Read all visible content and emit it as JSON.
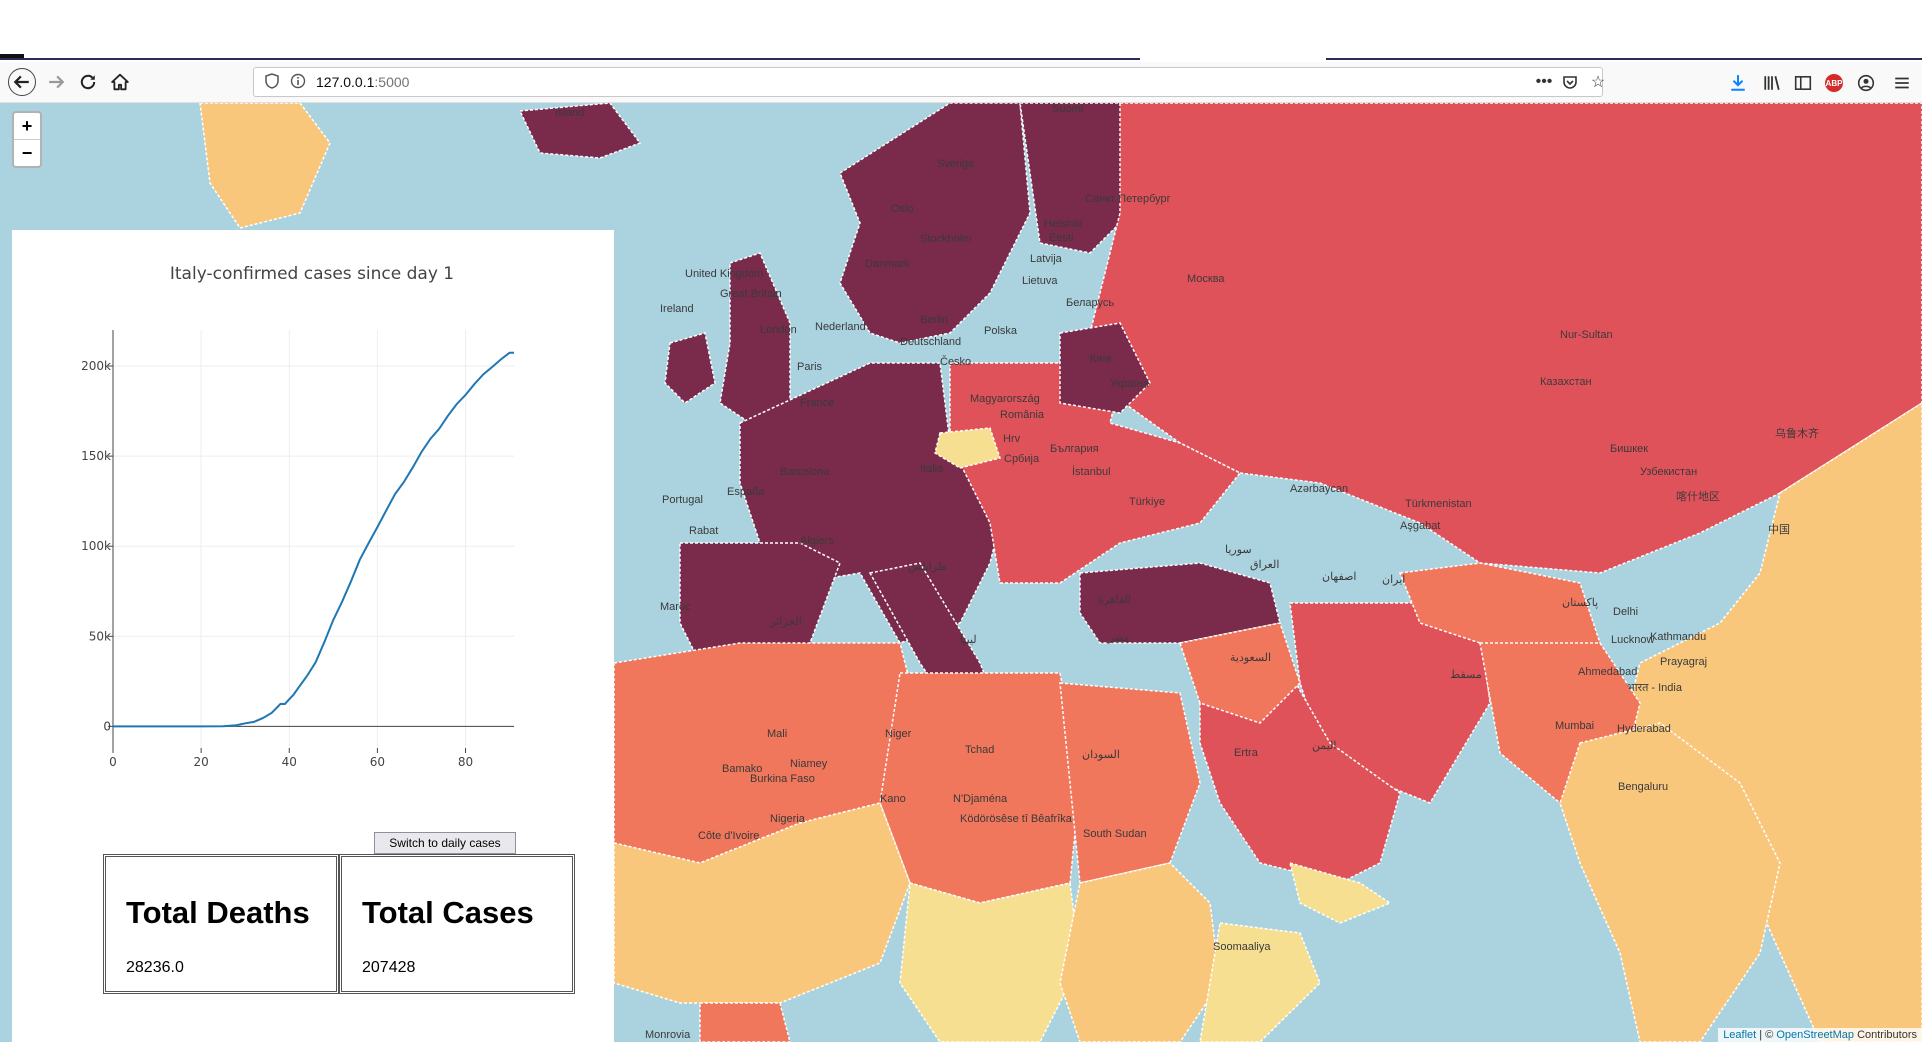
{
  "browser": {
    "url_host": "127.0.0.1",
    "url_port": ":5000",
    "icons": [
      "back-icon",
      "forward-icon",
      "reload-icon",
      "home-icon",
      "shield-icon",
      "info-icon",
      "more-icon",
      "pocket-icon",
      "bookmark-star-icon",
      "download-icon",
      "library-icon",
      "sidebar-icon",
      "adblock-icon",
      "account-icon",
      "menu-icon"
    ],
    "abp_label": "ABP"
  },
  "map": {
    "zoom_in": "+",
    "zoom_out": "−",
    "attribution_leaflet": "Leaflet",
    "attribution_sep": " | © ",
    "attribution_osm": "OpenStreetMap",
    "attribution_tail": " Contributors",
    "labels": [
      "Island",
      "Suomi",
      "Sverige",
      "Oslo",
      "Helsinki",
      "Санкт Петербург",
      "Stockholm",
      "Eesti",
      "Latvija",
      "Lietuva",
      "Москва",
      "Danmark",
      "United Kingdom",
      "Great Britain",
      "Ireland",
      "London",
      "Berlin",
      "Nederland",
      "Deutschland",
      "Polska",
      "Беларусь",
      "Česko",
      "Київ",
      "Україна",
      "Paris",
      "France",
      "Magyarország",
      "România",
      "Hrv",
      "Србија",
      "България",
      "Italia",
      "Barcelona",
      "España",
      "Portugal",
      "İstanbul",
      "Türkiye",
      "Nur-Sultan",
      "Казахстан",
      "Бишкек",
      "Узбекистан",
      "Türkmenistan",
      "Aşgabat",
      "Azərbaycan",
      "ایران",
      "اصفهان",
      "العراق",
      "سوريا",
      "Algiers",
      "طرابلس",
      "Rabat",
      "Maroc",
      "الجزائر",
      "ليبيا",
      "مصر",
      "القاهرة",
      "السعودية",
      "مسقط",
      "Delhi",
      "Lucknow",
      "Kathmandu",
      "Prayagraj",
      "भारत - India",
      "Ahmedabad",
      "Mumbai",
      "Hyderabad",
      "Bengaluru",
      "Mali",
      "Niger",
      "Tchad",
      "السودان",
      "Bamako",
      "Niamey",
      "Burkina Faso",
      "Nigeria",
      "Kano",
      "N'Djaména",
      "Ködörösêse tî Bêafrîka",
      "South Sudan",
      "Côte d'Ivoire",
      "Soomaaliya",
      "Ertra",
      "اليمن",
      "中国",
      "乌鲁木齐",
      "喀什地区",
      "پاکستان",
      "Monrovia"
    ]
  },
  "chart_data": {
    "type": "line",
    "title": "Italy-confirmed cases since day 1",
    "xlabel": "",
    "ylabel": "",
    "xlim": [
      0,
      91
    ],
    "ylim": [
      -12000,
      220000
    ],
    "xticks": [
      0,
      20,
      40,
      60,
      80
    ],
    "xtick_labels": [
      "0",
      "20",
      "40",
      "60",
      "80"
    ],
    "yticks": [
      0,
      50000,
      100000,
      150000,
      200000
    ],
    "ytick_labels": [
      "0",
      "50k",
      "100k",
      "150k",
      "200k"
    ],
    "grid": true,
    "series": [
      {
        "color": "#1f77b4",
        "x": [
          0,
          5,
          10,
          15,
          20,
          25,
          28,
          30,
          32,
          34,
          36,
          38,
          39,
          40,
          41,
          42,
          44,
          46,
          48,
          50,
          52,
          54,
          56,
          58,
          60,
          62,
          64,
          66,
          68,
          70,
          72,
          74,
          76,
          78,
          80,
          82,
          84,
          86,
          88,
          90,
          91
        ],
        "y": [
          0,
          3,
          3,
          3,
          3,
          100,
          650,
          1700,
          2500,
          4600,
          7400,
          12500,
          12400,
          15100,
          17700,
          21200,
          27900,
          35700,
          47000,
          59100,
          69200,
          80500,
          92500,
          101700,
          110600,
          119800,
          128900,
          135600,
          143600,
          152300,
          159500,
          165100,
          172400,
          178900,
          183900,
          189900,
          195300,
          199400,
          203600,
          207400,
          207428
        ]
      }
    ]
  },
  "stats": {
    "deaths_label": "Total Deaths",
    "deaths_value": "28236.0",
    "cases_label": "Total Cases",
    "cases_value": "207428"
  },
  "controls": {
    "switch_label": "Switch to daily cases"
  },
  "colors": {
    "ocean": "#aad3df",
    "dark_purple": "#7a2a4a",
    "red": "#e0525a",
    "orange_red": "#f0765c",
    "orange": "#f8b06a",
    "light_orange": "#f9c77c",
    "pale_yellow": "#f7df92",
    "line": "#1f77b4"
  }
}
